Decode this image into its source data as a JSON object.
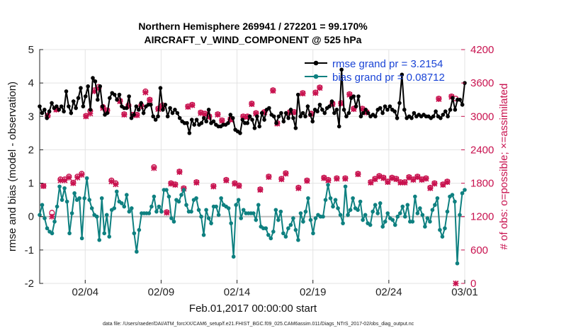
{
  "chart_data": {
    "type": "line",
    "title_line1": "Northern Hemisphere 269941 / 272201 = 99.170%",
    "title_line2": "AIRCRAFT_V_WIND_COMPONENT @ 525 hPa",
    "xlabel": "Feb.01,2017 00:00:00 start",
    "ylabel": "rmse and bias (model - observation)",
    "ylabel_right": "# of obs: o=possible; ×=assimilated",
    "footnote": "data file: /Users/raeder/DAI/ATM_forcXX/CAM6_setup/f.e21.FHIST_BGC.f09_025.CAM6assim.011/Diags_NTrS_2017-02/obs_diag_output.nc",
    "xlim": [
      1,
      29
    ],
    "ylim": [
      -2,
      5
    ],
    "ylim_right": [
      0,
      4200
    ],
    "x_tick_values": [
      4,
      9,
      14,
      19,
      24,
      29
    ],
    "x_tick_labels": [
      "02/04",
      "02/09",
      "02/14",
      "02/19",
      "02/24",
      "03/01"
    ],
    "y_ticks": [
      "5",
      "4",
      "3",
      "2",
      "1",
      "0",
      "-1",
      "-2"
    ],
    "y_ticks_right": [
      "4200",
      "3600",
      "3000",
      "2400",
      "1800",
      "1200",
      "600",
      "0"
    ],
    "colors": {
      "rmse": "#000000",
      "bias": "#0e8080",
      "obs": "#c8124f",
      "legend_text": "#1a44d6",
      "zero_line": "#bdbdbd"
    },
    "series": [
      {
        "name": "rmse grand pr = 3.2154",
        "values": [
          3.3,
          3.1,
          3.2,
          2.95,
          3.15,
          3.4,
          3.25,
          3.3,
          3.2,
          3.3,
          3.15,
          3.75,
          3.3,
          3.1,
          3.45,
          3.25,
          3.55,
          3.85,
          3.3,
          3.6,
          3.9,
          3.2,
          4.15,
          4.05,
          3.5,
          3.9,
          3.3,
          3.05,
          3.1,
          3.55,
          3.7,
          3.65,
          3.5,
          3.65,
          3.3,
          3.25,
          3.25,
          3.6,
          2.95,
          3.05,
          3.3,
          3.2,
          3.4,
          3.1,
          3.3,
          3.35,
          3.35,
          3.0,
          2.9,
          3.0,
          3.85,
          3.2,
          3.35,
          3.0,
          3.25,
          3.1,
          3.2,
          3.1,
          2.95,
          2.85,
          2.8,
          2.8,
          2.5,
          2.9,
          2.75,
          2.9,
          2.75,
          2.8,
          2.95,
          2.85,
          3.2,
          2.8,
          2.85,
          2.75,
          2.7,
          2.7,
          2.75,
          2.75,
          2.8,
          3.05,
          2.95,
          2.6,
          2.55,
          2.5,
          2.9,
          2.8,
          2.8,
          3.0,
          2.9,
          2.65,
          3.0,
          2.7,
          3.1,
          2.9,
          3.2,
          3.25,
          3.05,
          3.0,
          2.8,
          3.0,
          3.1,
          2.85,
          3.1,
          2.95,
          3.2,
          2.95,
          2.65,
          3.65,
          3.0,
          3.1,
          3.0,
          3.3,
          3.05,
          2.85,
          3.2,
          3.15,
          3.35,
          3.2,
          3.1,
          3.25,
          3.3,
          3.45,
          3.1,
          3.2,
          2.7,
          4.4,
          3.2,
          3.0,
          3.1,
          3.55,
          3.6,
          3.3,
          3.6,
          3.0,
          3.1,
          3.2,
          3.1,
          3.0,
          3.05,
          3.0,
          3.2,
          3.25,
          3.1,
          3.3,
          3.2,
          3.3,
          3.2,
          3.15,
          2.95,
          3.4,
          4.25,
          3.2,
          2.95,
          3.0,
          2.95,
          3.1,
          3.0,
          3.05,
          3.0,
          3.05,
          3.0,
          3.0,
          2.95,
          3.0,
          3.15,
          3.0,
          2.95,
          3.05,
          3.15,
          3.0,
          3.2,
          3.55,
          3.2,
          3.5,
          3.5,
          3.35,
          4.0
        ]
      },
      {
        "name": "bias grand pr = 0.08712",
        "values": [
          0.05,
          0.35,
          -0.05,
          -0.35,
          -0.45,
          -0.5,
          -0.15,
          0.3,
          0.9,
          0.5,
          0.85,
          0.45,
          -0.5,
          0.1,
          0.7,
          0.5,
          0.55,
          -0.65,
          0.55,
          1.15,
          0.5,
          0.25,
          0.05,
          0.0,
          -0.7,
          0.55,
          -0.5,
          0.05,
          -0.6,
          0.2,
          0.25,
          0.75,
          0.45,
          0.4,
          0.3,
          0.65,
          0.15,
          0.25,
          -0.5,
          -1.05,
          -0.4,
          0.1,
          0.1,
          0.1,
          0.1,
          0.3,
          0.6,
          0.15,
          0.3,
          0.15,
          0.8,
          0.8,
          0.6,
          -0.05,
          -0.15,
          0.5,
          0.45,
          0.65,
          0.8,
          0.35,
          0.15,
          0.15,
          0.5,
          0.55,
          0.2,
          0.0,
          -0.55,
          0.2,
          -0.05,
          -0.2,
          0.3,
          0.3,
          0.05,
          0.55,
          0.35,
          0.3,
          0.25,
          -0.2,
          -1.2,
          0.35,
          0.5,
          -0.05,
          0.2,
          0.1,
          0.1,
          0.1,
          0.1,
          -0.1,
          0.35,
          -0.3,
          -0.35,
          -0.35,
          -0.55,
          -0.65,
          -0.45,
          0.2,
          -0.1,
          0.15,
          -0.5,
          -0.6,
          -0.35,
          -0.25,
          -0.05,
          -0.4,
          -0.7,
          0.1,
          -0.15,
          0.15,
          0.55,
          -0.1,
          -0.5,
          -0.05,
          0.05,
          0.0,
          0.0,
          0.5,
          0.95,
          0.55,
          0.3,
          0.5,
          0.25,
          0.05,
          -0.2,
          0.9,
          0.05,
          0.2,
          0.55,
          0.25,
          0.2,
          0.45,
          -0.1,
          0.05,
          -0.2,
          -0.25,
          0.15,
          0.35,
          0.1,
          0.4,
          -0.3,
          -0.15,
          0.1,
          -0.05,
          -0.1,
          -0.25,
          0.0,
          0.1,
          0.3,
          0.0,
          0.35,
          -0.15,
          -0.15,
          0.6,
          0.1,
          0.25,
          0.05,
          -0.3,
          -0.05,
          -0.15,
          0.2,
          0.35,
          0.55,
          -0.4,
          -0.6,
          -0.35,
          0.15,
          0.6,
          0.65,
          0.45,
          -1.4,
          0.05,
          0.7,
          0.8
        ]
      }
    ],
    "obs_possible": [
      1750,
      3010,
      1270,
      3130,
      1870,
      1870,
      1920,
      1810,
      1920,
      1970,
      3010,
      3100,
      3470,
      3530,
      3170,
      3110,
      1850,
      1800,
      3280,
      3040,
      3200,
      3030,
      3030,
      3200,
      3450,
      3300,
      2090,
      3140,
      3200,
      1280,
      1800,
      1780,
      2010,
      1710,
      3180,
      3210,
      1820,
      3070,
      3050,
      3000,
      1750,
      3040,
      2930,
      1860,
      2950,
      1800,
      1760,
      3000,
      3000,
      3230,
      3060,
      1690,
      3080,
      1920,
      3470,
      2880,
      1880,
      1980,
      3080,
      3080,
      1720,
      3420,
      1850,
      3050,
      3430,
      3520,
      1900,
      1860,
      3230,
      1890,
      3240,
      1890,
      3400,
      3140,
      1970,
      3140,
      3080,
      1820,
      1880,
      1930,
      1900,
      1830,
      1900,
      1880,
      1820,
      1820,
      1910,
      1870,
      1920,
      1870,
      1890,
      1720,
      1800,
      3320,
      1780,
      1830,
      3360,
      3320
    ],
    "obs_assimilated": [
      1750,
      3020,
      1200,
      3120,
      1850,
      1850,
      1900,
      1800,
      1900,
      1950,
      3000,
      3050,
      3450,
      3500,
      3150,
      3100,
      1830,
      1780,
      3270,
      3030,
      3180,
      3020,
      3020,
      3180,
      3430,
      3290,
      2070,
      3130,
      3180,
      1270,
      1790,
      1770,
      2000,
      1700,
      3170,
      3200,
      1810,
      3060,
      3040,
      2990,
      1740,
      3030,
      2920,
      1850,
      2940,
      1790,
      1750,
      2990,
      2990,
      3220,
      3050,
      1680,
      3070,
      1910,
      3460,
      2870,
      1870,
      1970,
      3070,
      3070,
      1710,
      3410,
      1840,
      3040,
      3420,
      3510,
      1890,
      1850,
      3220,
      1880,
      3230,
      1880,
      3390,
      3130,
      1960,
      3130,
      3070,
      1810,
      1870,
      1920,
      1890,
      1820,
      1890,
      1870,
      1810,
      1810,
      1900,
      1860,
      1910,
      1860,
      1880,
      1710,
      1790,
      3310,
      1770,
      1820,
      3350,
      0
    ]
  }
}
